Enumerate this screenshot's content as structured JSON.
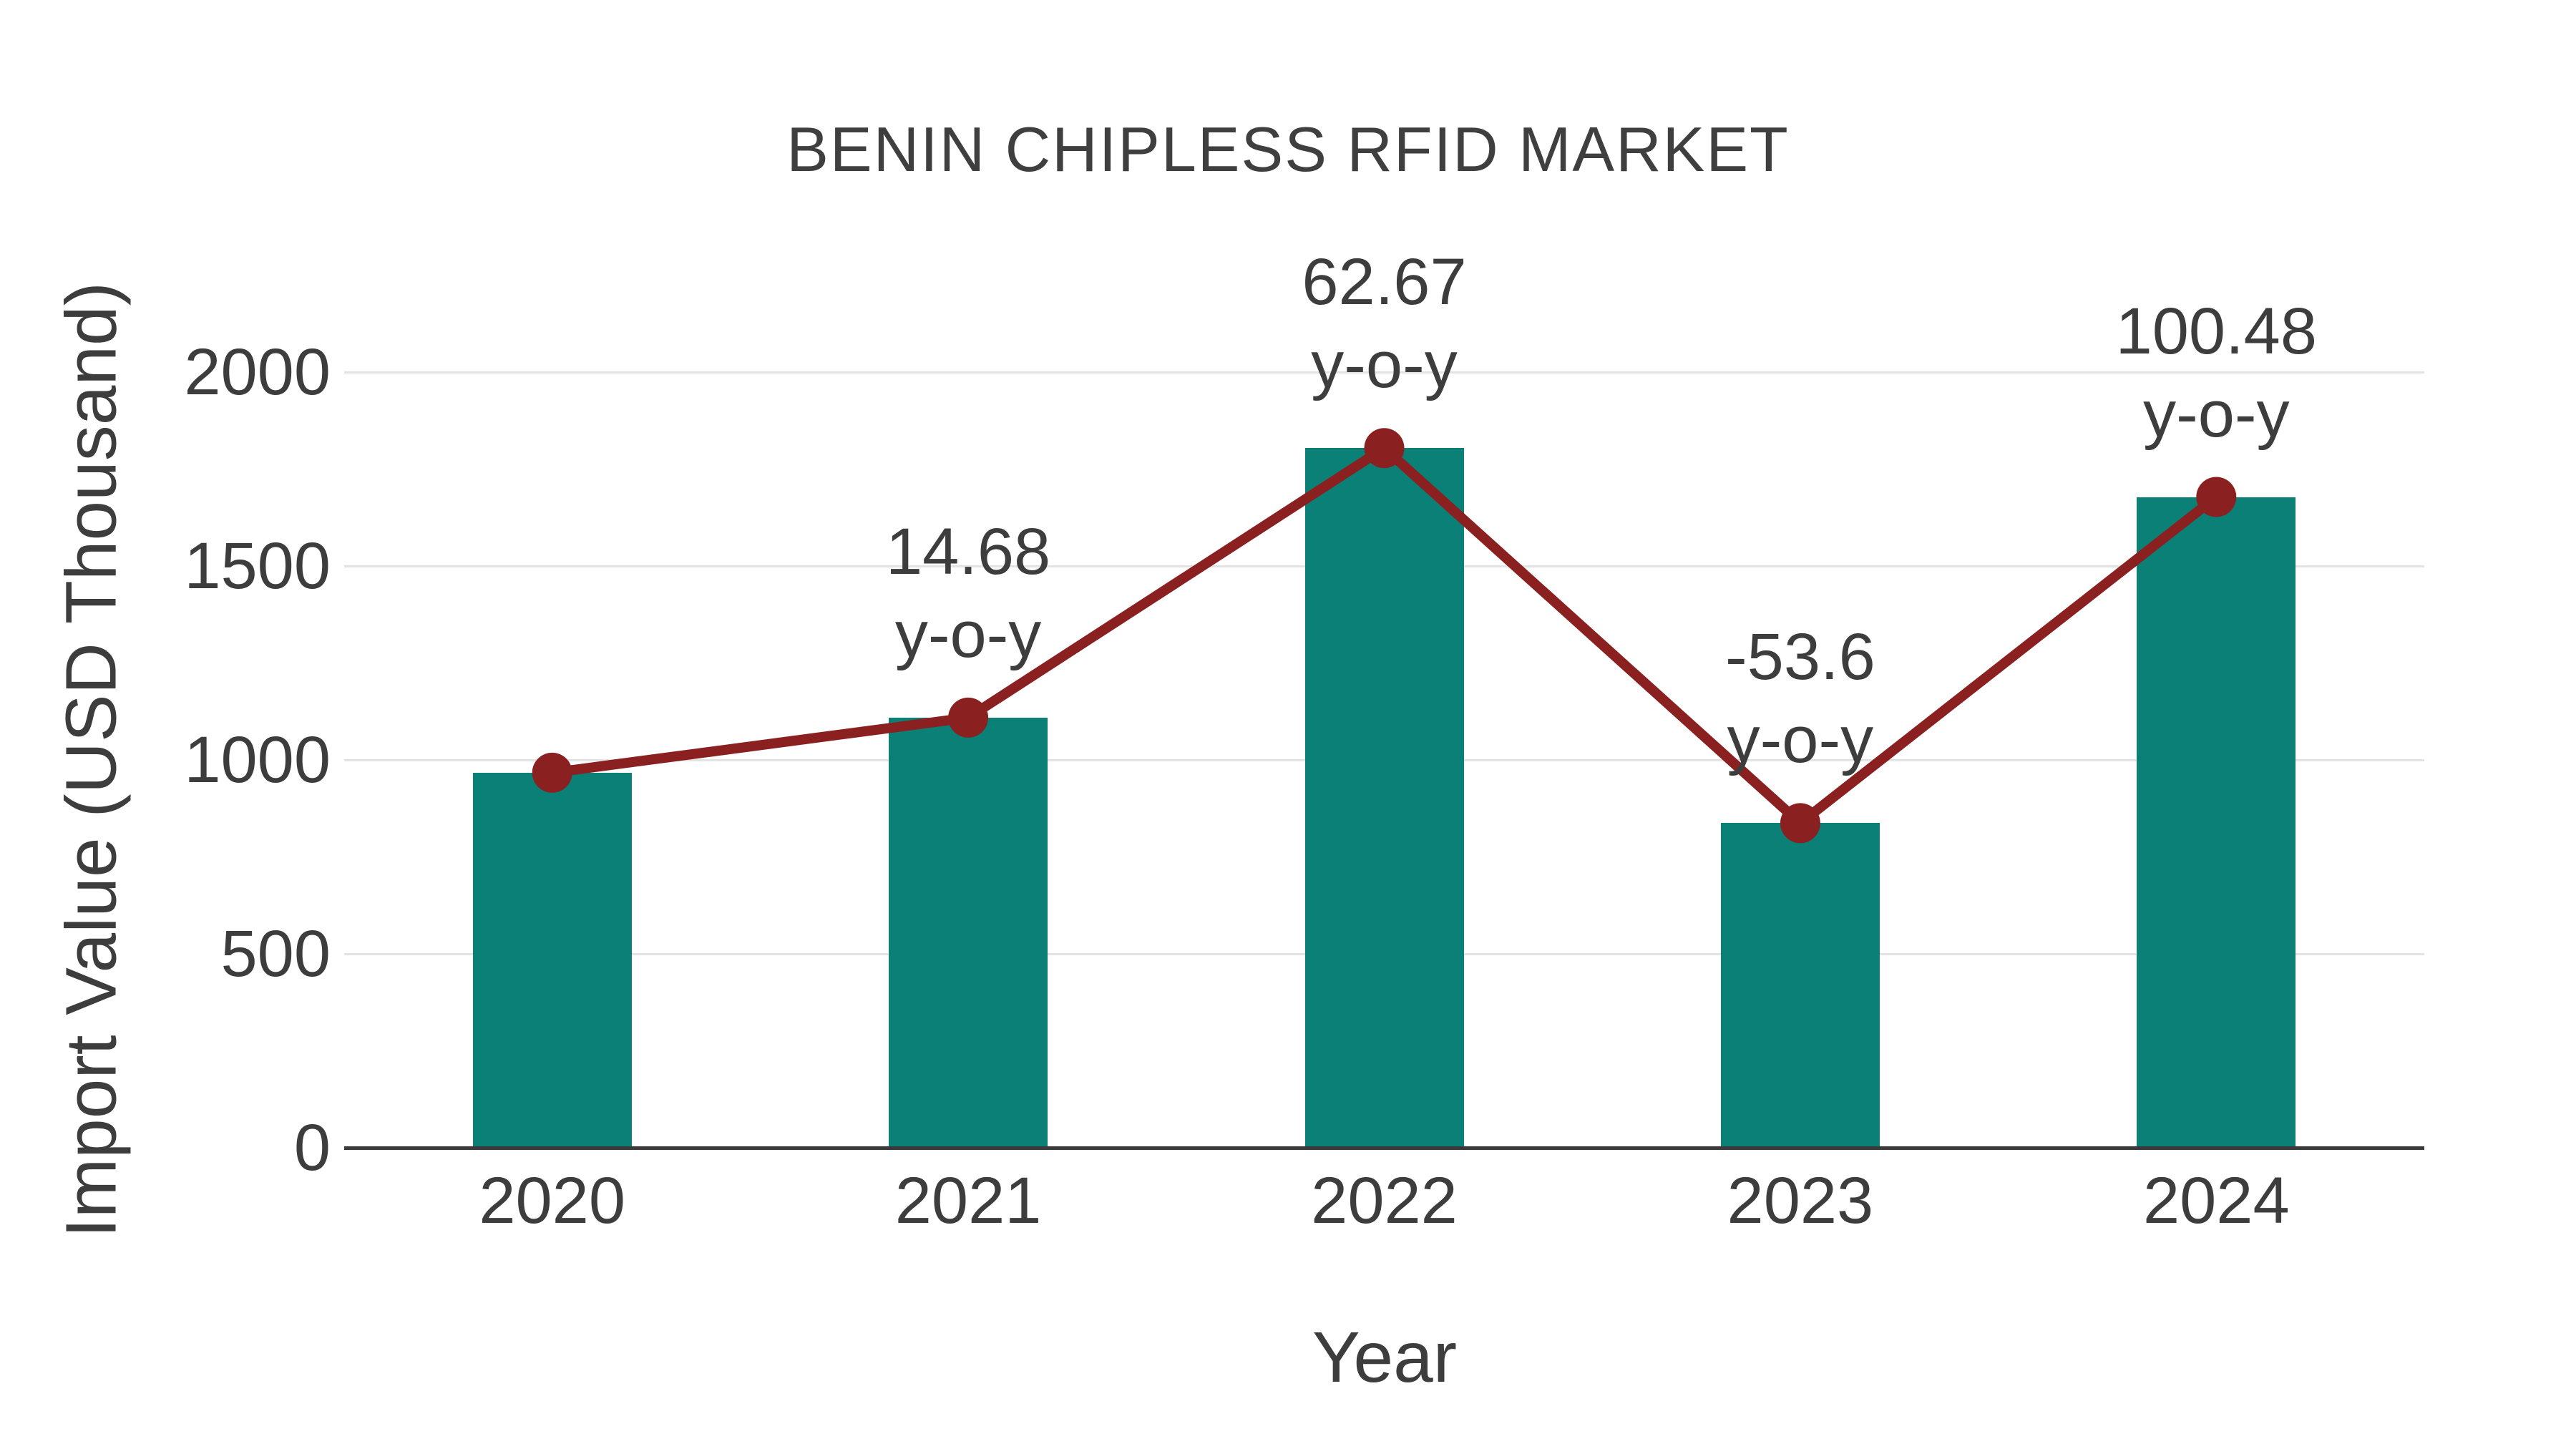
{
  "chart_data": {
    "type": "bar",
    "title": "BENIN CHIPLESS RFID MARKET",
    "xlabel": "Year",
    "ylabel": "Import Value (USD Thousand)",
    "categories": [
      "2020",
      "2021",
      "2022",
      "2023",
      "2024"
    ],
    "series": [
      {
        "name": "Import Value (USD Thousand)",
        "type": "bar",
        "color": "#0a8076",
        "values": [
          967,
          1109,
          1804,
          837,
          1678
        ]
      },
      {
        "name": "Year-over-year trend line",
        "type": "line",
        "color": "#8b2020",
        "values": [
          967,
          1109,
          1804,
          837,
          1678
        ]
      }
    ],
    "yoy_percent": [
      null,
      14.68,
      62.67,
      -53.6,
      100.48
    ],
    "annotations": [
      {
        "category": "2021",
        "lines": [
          "14.68",
          "y-o-y"
        ]
      },
      {
        "category": "2022",
        "lines": [
          "62.67",
          "y-o-y"
        ]
      },
      {
        "category": "2023",
        "lines": [
          "-53.6",
          "y-o-y"
        ]
      },
      {
        "category": "2024",
        "lines": [
          "100.48",
          "y-o-y"
        ]
      }
    ],
    "ylim": [
      0,
      2000
    ],
    "yticks": [
      0,
      500,
      1000,
      1500,
      2000
    ],
    "grid": true,
    "legend_position": "none",
    "colors": {
      "bar": "#0a8076",
      "line": "#8b2020",
      "marker": "#8b2020",
      "gridline": "#e3e3e3",
      "axis_line": "#3a3a3a",
      "text": "#3d3d3d",
      "background": "#ffffff"
    }
  }
}
